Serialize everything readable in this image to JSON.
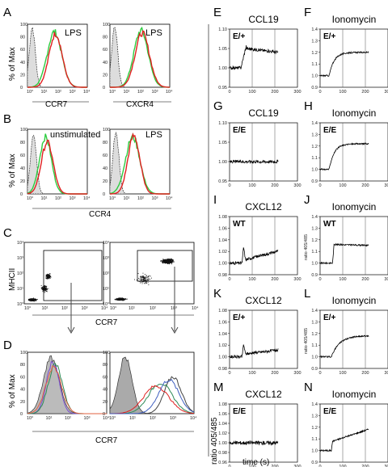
{
  "panel_labels": [
    "A",
    "B",
    "C",
    "D",
    "E",
    "F",
    "G",
    "H",
    "I",
    "J",
    "K",
    "L",
    "M",
    "N"
  ],
  "flow": {
    "A_left": {
      "label": "LPS",
      "xlabel": "CCR7"
    },
    "A_right": {
      "label": "LPS",
      "xlabel": "CXCR4"
    },
    "B_left": {
      "label": "unstimulated"
    },
    "B_right": {
      "label": "LPS"
    },
    "B_xlabel": "CCR4",
    "pct_max": "% of Max",
    "C_ylabel": "MHCII",
    "C_xlabel": "CCR7",
    "D_ylabel": "% of Max",
    "D_xlabel": "CCR7",
    "hist_yticks": [
      "0",
      "20",
      "40",
      "60",
      "80",
      "100"
    ],
    "log_ticks": [
      "10°",
      "10¹",
      "10²",
      "10³",
      "10⁴"
    ],
    "dot_yticks": [
      "10°",
      "10¹",
      "10²",
      "10³",
      "10⁴"
    ]
  },
  "calcium": {
    "E": {
      "title": "CCL19",
      "tag": "E/+",
      "yticks": [
        "0.95",
        "1.00",
        "1.05",
        "1.10"
      ],
      "ylim": [
        0.95,
        1.1
      ]
    },
    "F": {
      "title": "Ionomycin",
      "tag": "E/+",
      "yticks": [
        "0.9",
        "1.0",
        "1.1",
        "1.2",
        "1.3",
        "1.4"
      ],
      "ylim": [
        0.9,
        1.4
      ]
    },
    "G": {
      "title": "CCL19",
      "tag": "E/E",
      "yticks": [
        "0.95",
        "1.00",
        "1.05",
        "1.10"
      ],
      "ylim": [
        0.95,
        1.1
      ]
    },
    "H": {
      "title": "Ionomycin",
      "tag": "E/E",
      "yticks": [
        "0.9",
        "1.0",
        "1.1",
        "1.2",
        "1.3",
        "1.4"
      ],
      "ylim": [
        0.9,
        1.4
      ]
    },
    "I": {
      "title": "CXCL12",
      "tag": "WT",
      "yticks": [
        "0.98",
        "1.00",
        "1.02",
        "1.04",
        "1.06",
        "1.08"
      ],
      "ylim": [
        0.98,
        1.08
      ]
    },
    "J": {
      "title": "Ionomycin",
      "tag": "WT",
      "yticks": [
        "0.9",
        "1.0",
        "1.1",
        "1.2",
        "1.3",
        "1.4"
      ],
      "ylim": [
        0.9,
        1.4
      ],
      "ylabel": "ratio 405/485"
    },
    "K": {
      "title": "CXCL12",
      "tag": "E/+",
      "yticks": [
        "0.98",
        "1.00",
        "1.02",
        "1.04",
        "1.06",
        "1.08"
      ],
      "ylim": [
        0.98,
        1.08
      ]
    },
    "L": {
      "title": "Ionomycin",
      "tag": "E/+",
      "yticks": [
        "0.9",
        "1.0",
        "1.1",
        "1.2",
        "1.3",
        "1.4"
      ],
      "ylim": [
        0.9,
        1.4
      ],
      "ylabel": "ratio 405/485"
    },
    "M": {
      "title": "CXCL12",
      "tag": "E/E",
      "yticks": [
        "0.96",
        "0.98",
        "1.00",
        "1.02",
        "1.04",
        "1.06",
        "1.08"
      ],
      "ylim": [
        0.96,
        1.08
      ]
    },
    "N": {
      "title": "Ionomycin",
      "tag": "E/E",
      "yticks": [
        "0.9",
        "1.0",
        "1.1",
        "1.2",
        "1.3",
        "1.4"
      ],
      "ylim": [
        0.9,
        1.4
      ]
    },
    "xticks": [
      "0",
      "100",
      "200",
      "300"
    ],
    "xlabel": "time (s)",
    "ylabel_main": "ratio 405/485"
  }
}
